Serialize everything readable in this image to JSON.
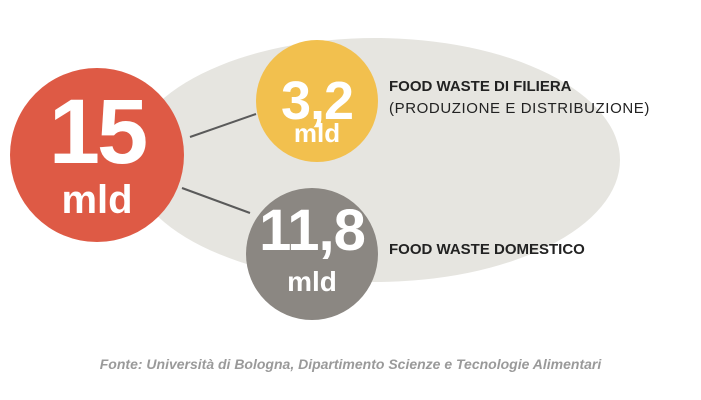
{
  "total": {
    "value": "15",
    "unit": "mld"
  },
  "supply_chain": {
    "value": "3,2",
    "unit": "mld",
    "title": "FOOD WASTE DI FILIERA",
    "subtitle": "(PRODUZIONE E DISTRIBUZIONE)"
  },
  "domestic": {
    "value": "11,8",
    "unit": "mld",
    "title": "FOOD WASTE DOMESTICO"
  },
  "source": "Fonte: Università di Bologna, Dipartimento Scienze e Tecnologie Alimentari",
  "colors": {
    "background_ellipse": "#e6e5e0",
    "total_circle": "#de5a45",
    "supply_circle": "#f2c04e",
    "domestic_circle": "#8b8782",
    "connector": "#5a5a5a"
  }
}
